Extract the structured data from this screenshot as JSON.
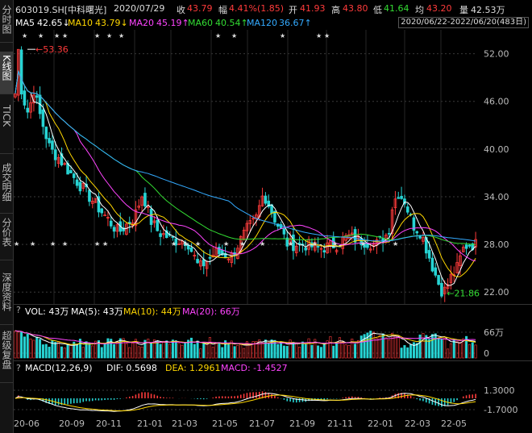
{
  "sidebar": {
    "tabs": [
      "分时图",
      "K线图",
      "TICK",
      "成交明细",
      "分价表",
      "深度资料",
      "超级复盘"
    ],
    "active": 1
  },
  "header": {
    "code": "603019.SH[中科曙光]",
    "date": "2020/07/29",
    "close_label": "收",
    "close": "43.79",
    "change_label": "幅",
    "change": "4.41%(1.85)",
    "open_label": "开",
    "open": "41.93",
    "high_label": "高",
    "high": "43.80",
    "low_label": "低",
    "low": "41.64",
    "avg_label": "均",
    "avg": "43.20",
    "vol_label": "量",
    "vol": "42.53万"
  },
  "ma_bar": {
    "ma5_label": "MA5",
    "ma5": "42.65↓",
    "ma10_label": "MA10",
    "ma10": "43.79↓",
    "ma20_label": "MA20",
    "ma20": "45.19↑",
    "ma60_label": "MA60",
    "ma60": "40.54↑",
    "ma120_label": "MA120",
    "ma120": "36.67↑",
    "range": "2020/06/22-2022/06/20(483日)"
  },
  "price_axis": [
    "52.00",
    "46.00",
    "40.00",
    "34.00",
    "28.00",
    "22.00"
  ],
  "price_markers": {
    "high": "53.36",
    "low": "21.86"
  },
  "vol_panel": {
    "q": "?",
    "vol_label": "VOL: 43万",
    "ma5_label": "MA(5): 43万",
    "ma10_label": "MA(10): 44万",
    "ma20_label": "MA(20): 66万",
    "axis_top": "66万",
    "axis_bottom": "0"
  },
  "macd_panel": {
    "q": "?",
    "label": "MACD(12,26,9)",
    "dif_label": "DIF: 0.5698",
    "dea_label": "DEA: 1.2961",
    "macd_label": "MACD: -1.4527",
    "axis_top": "1.3000",
    "axis_bottom": "-1.7000"
  },
  "x_axis": [
    "20-06",
    "20-09",
    "20-11",
    "21-01",
    "21-03",
    "21-05",
    "21-07",
    "21-09",
    "21-11",
    "22-01",
    "22-03",
    "22-05"
  ],
  "colors": {
    "up": "#ff3b3b",
    "down": "#27d4d4",
    "ma5": "#ffffff",
    "ma10": "#ffd700",
    "ma20": "#ff44ff",
    "ma60": "#33dd33",
    "ma120": "#33aaff",
    "grid": "#3a3a3a"
  },
  "chart_data": {
    "type": "candlestick",
    "price_anchors": [
      [
        0,
        43
      ],
      [
        5,
        53.4
      ],
      [
        10,
        47
      ],
      [
        18,
        44.5
      ],
      [
        25,
        47.5
      ],
      [
        32,
        44.5
      ],
      [
        45,
        40
      ],
      [
        55,
        39
      ],
      [
        70,
        37
      ],
      [
        90,
        34.5
      ],
      [
        110,
        32
      ],
      [
        130,
        29.5
      ],
      [
        150,
        31.5
      ],
      [
        160,
        34.5
      ],
      [
        170,
        31
      ],
      [
        180,
        29.5
      ],
      [
        190,
        29
      ],
      [
        200,
        28.5
      ],
      [
        215,
        28.5
      ],
      [
        230,
        25
      ],
      [
        250,
        27
      ],
      [
        270,
        26.5
      ],
      [
        290,
        30
      ],
      [
        300,
        31
      ],
      [
        310,
        34.5
      ],
      [
        325,
        31
      ],
      [
        340,
        28
      ],
      [
        360,
        28
      ],
      [
        380,
        27.5
      ],
      [
        400,
        28
      ],
      [
        415,
        29
      ],
      [
        430,
        28.5
      ],
      [
        450,
        28
      ],
      [
        465,
        29.5
      ],
      [
        470,
        33
      ],
      [
        477,
        34.5
      ],
      [
        485,
        33.5
      ],
      [
        495,
        30.5
      ],
      [
        505,
        29.5
      ],
      [
        512,
        27.5
      ],
      [
        522,
        24.5
      ],
      [
        530,
        22.3
      ],
      [
        535,
        22.2
      ],
      [
        542,
        23.8
      ],
      [
        550,
        25
      ],
      [
        558,
        27.5
      ],
      [
        563,
        28
      ]
    ],
    "n_candles": 150,
    "price_range": [
      20.5,
      55
    ]
  }
}
